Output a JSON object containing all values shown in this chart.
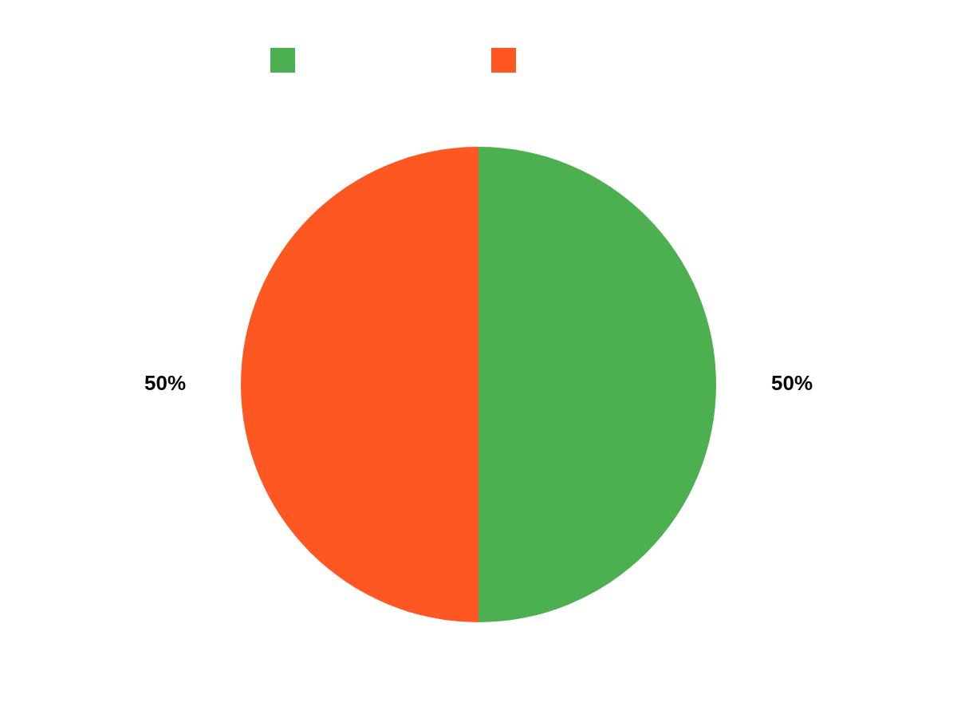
{
  "chart_data": {
    "type": "pie",
    "categories": [
      null,
      null
    ],
    "values": [
      50,
      50
    ],
    "colors": [
      "#4caf50",
      "#ff5722"
    ],
    "value_labels": [
      "50%",
      "50%"
    ]
  }
}
